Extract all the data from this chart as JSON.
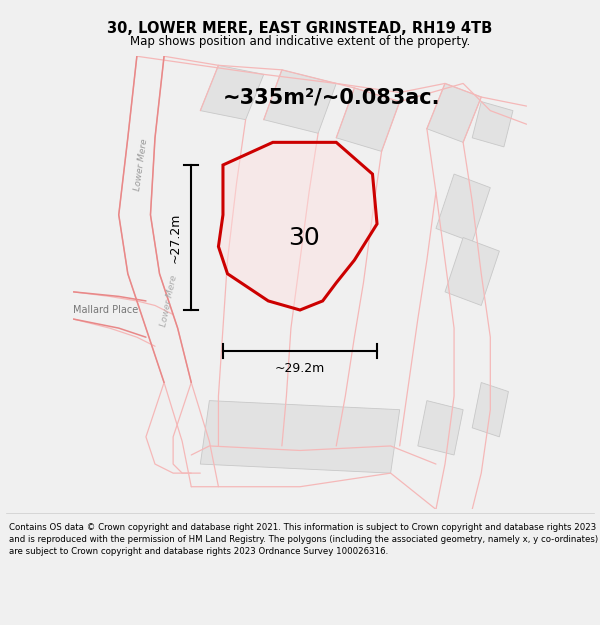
{
  "title": "30, LOWER MERE, EAST GRINSTEAD, RH19 4TB",
  "subtitle": "Map shows position and indicative extent of the property.",
  "footer": "Contains OS data © Crown copyright and database right 2021. This information is subject to Crown copyright and database rights 2023 and is reproduced with the permission of HM Land Registry. The polygons (including the associated geometry, namely x, y co-ordinates) are subject to Crown copyright and database rights 2023 Ordnance Survey 100026316.",
  "area_label": "~335m²/~0.083ac.",
  "number_label": "30",
  "dim_h": "~27.2m",
  "dim_w": "~29.2m",
  "bg_color": "#f0f0f0",
  "map_bg": "#f8f8f8",
  "plot_color_edge": "#cc0000",
  "plot_fill_rgba": [
    1.0,
    0.88,
    0.88,
    0.45
  ],
  "road_color_light": "#f5b8b8",
  "road_color_med": "#e88888",
  "building_fill": "#e2e2e2",
  "building_edge": "#c8c8c8",
  "title_fontsize": 10.5,
  "subtitle_fontsize": 8.5,
  "footer_fontsize": 6.2,
  "area_fontsize": 15,
  "number_fontsize": 18,
  "dim_fontsize": 9,
  "map_xlim": [
    0,
    100
  ],
  "map_ylim": [
    0,
    100
  ]
}
